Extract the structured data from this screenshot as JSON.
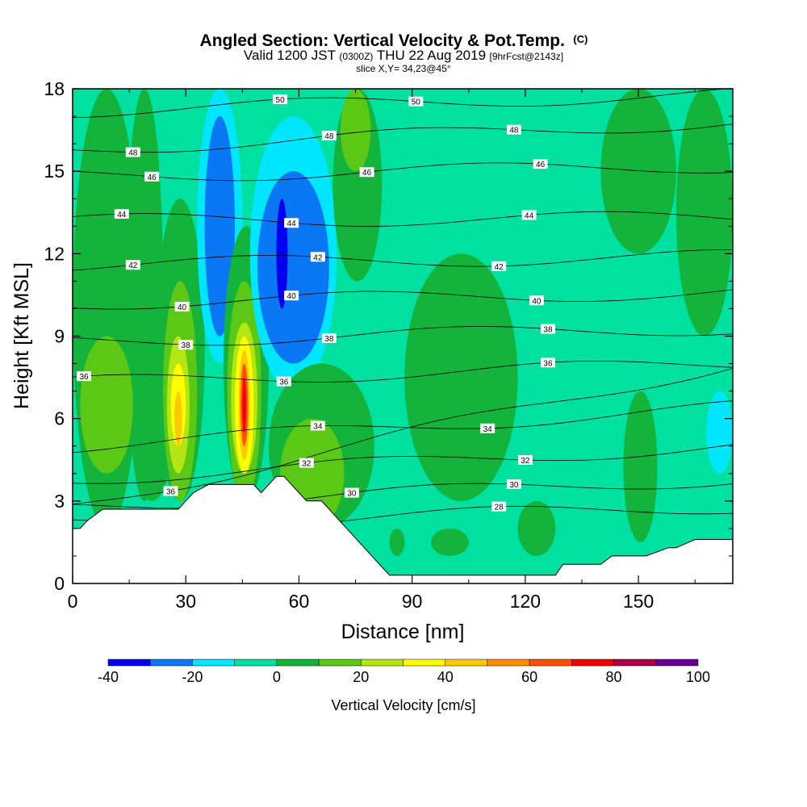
{
  "title": {
    "main": "Angled Section: Vertical Velocity & Pot.Temp.",
    "main_suffix": "(C)",
    "valid_prefix": "Valid 1200 JST",
    "valid_utc": "(0300Z)",
    "valid_date": "THU 22 Aug 2019",
    "valid_fcst": "[9hrFcst@2143z]",
    "slice": "slice X,Y= 34,23@45°"
  },
  "chart_data": {
    "type": "heatmap",
    "xlabel": "Distance [nm]",
    "ylabel": "Height [Kft MSL]",
    "xlim": [
      0,
      175
    ],
    "ylim": [
      0,
      18
    ],
    "x_ticks": [
      "0",
      "30",
      "60",
      "90",
      "120",
      "150"
    ],
    "x_tick_values": [
      0,
      30,
      60,
      90,
      120,
      150
    ],
    "y_ticks": [
      "0",
      "3",
      "6",
      "9",
      "12",
      "15",
      "18"
    ],
    "y_tick_values": [
      0,
      3,
      6,
      9,
      12,
      15,
      18
    ],
    "fill_variable": "Vertical Velocity [cm/s]",
    "colorbar": {
      "label": "Vertical Velocity [cm/s]",
      "levels": [
        -40,
        -30,
        -20,
        -10,
        0,
        10,
        20,
        30,
        40,
        50,
        60,
        70,
        80,
        90,
        100
      ],
      "tick_labels": [
        "-40",
        "-20",
        "0",
        "20",
        "40",
        "60",
        "80",
        "100"
      ],
      "tick_values": [
        -40,
        -20,
        0,
        20,
        40,
        60,
        80,
        100
      ],
      "colors": [
        "#0000f0",
        "#0a78f5",
        "#00e6ff",
        "#00e0a0",
        "#14b43c",
        "#5ac814",
        "#b4e614",
        "#ffff00",
        "#ffc800",
        "#ff8c00",
        "#ff5000",
        "#f00000",
        "#aa0046",
        "#640096"
      ]
    },
    "background_color": "#00e0a0",
    "w_cells": [
      {
        "x": [
          0,
          175
        ],
        "z": [
          0,
          18
        ],
        "w": -5
      },
      {
        "x": [
          0,
          18
        ],
        "z": [
          2,
          18
        ],
        "w": 5
      },
      {
        "x": [
          14,
          24
        ],
        "z": [
          3,
          18
        ],
        "w": 5
      },
      {
        "x": [
          2,
          16
        ],
        "z": [
          4,
          9
        ],
        "w": 15
      },
      {
        "x": [
          16,
          26
        ],
        "z": [
          3,
          7
        ],
        "w": 5
      },
      {
        "x": [
          22,
          35
        ],
        "z": [
          3,
          14
        ],
        "w": 5
      },
      {
        "x": [
          24,
          33
        ],
        "z": [
          3,
          11
        ],
        "w": 15
      },
      {
        "x": [
          25,
          31
        ],
        "z": [
          4,
          9
        ],
        "w": 25
      },
      {
        "x": [
          26,
          30
        ],
        "z": [
          5,
          8
        ],
        "w": 35
      },
      {
        "x": [
          27,
          29
        ],
        "z": [
          5,
          7
        ],
        "w": 45
      },
      {
        "x": [
          33,
          45
        ],
        "z": [
          8,
          18
        ],
        "w": -15
      },
      {
        "x": [
          35,
          43
        ],
        "z": [
          9,
          17
        ],
        "w": -25
      },
      {
        "x": [
          40,
          52
        ],
        "z": [
          3,
          13
        ],
        "w": 5
      },
      {
        "x": [
          41,
          50
        ],
        "z": [
          3,
          11
        ],
        "w": 15
      },
      {
        "x": [
          42,
          49
        ],
        "z": [
          4,
          9.5
        ],
        "w": 25
      },
      {
        "x": [
          43,
          48
        ],
        "z": [
          4,
          9
        ],
        "w": 35
      },
      {
        "x": [
          44,
          47
        ],
        "z": [
          4.5,
          8.5
        ],
        "w": 45
      },
      {
        "x": [
          44.5,
          46.5
        ],
        "z": [
          5,
          8
        ],
        "w": 60
      },
      {
        "x": [
          45,
          46
        ],
        "z": [
          5.5,
          7.5
        ],
        "w": 75
      },
      {
        "x": [
          47,
          70
        ],
        "z": [
          7,
          17
        ],
        "w": -15
      },
      {
        "x": [
          49,
          68
        ],
        "z": [
          8,
          15
        ],
        "w": -25
      },
      {
        "x": [
          54,
          57
        ],
        "z": [
          10,
          14
        ],
        "w": -35
      },
      {
        "x": [
          52,
          80
        ],
        "z": [
          2,
          8
        ],
        "w": 5
      },
      {
        "x": [
          55,
          72
        ],
        "z": [
          2,
          6
        ],
        "w": 15
      },
      {
        "x": [
          69,
          82
        ],
        "z": [
          11,
          18
        ],
        "w": 5
      },
      {
        "x": [
          71,
          79
        ],
        "z": [
          15,
          18
        ],
        "w": 15
      },
      {
        "x": [
          88,
          118
        ],
        "z": [
          3,
          12
        ],
        "w": 5
      },
      {
        "x": [
          84,
          88
        ],
        "z": [
          1,
          2
        ],
        "w": 5
      },
      {
        "x": [
          95,
          105
        ],
        "z": [
          1,
          2
        ],
        "w": 5
      },
      {
        "x": [
          118,
          128
        ],
        "z": [
          1,
          3
        ],
        "w": 5
      },
      {
        "x": [
          140,
          160
        ],
        "z": [
          12,
          18
        ],
        "w": 5
      },
      {
        "x": [
          146,
          155
        ],
        "z": [
          1.5,
          7
        ],
        "w": 5
      },
      {
        "x": [
          160,
          175
        ],
        "z": [
          9,
          18
        ],
        "w": 5
      },
      {
        "x": [
          168,
          175
        ],
        "z": [
          4,
          7
        ],
        "w": -15
      }
    ],
    "terrain": {
      "x": [
        0,
        2,
        4,
        8,
        12,
        20,
        24,
        28,
        30,
        32,
        36,
        40,
        44,
        46,
        48,
        50,
        52,
        54,
        56,
        58,
        60,
        62,
        64,
        66,
        68,
        70,
        72,
        74,
        76,
        78,
        80,
        82,
        84,
        86,
        88,
        90,
        96,
        104,
        112,
        120,
        128,
        130,
        140,
        143,
        150,
        152,
        158,
        160,
        165,
        170,
        175
      ],
      "z": [
        2,
        2,
        2.3,
        2.7,
        2.7,
        2.7,
        2.7,
        2.7,
        3.0,
        3.3,
        3.6,
        3.6,
        3.6,
        3.6,
        3.6,
        3.3,
        3.6,
        3.9,
        3.9,
        3.6,
        3.3,
        3.0,
        3.0,
        3.0,
        2.7,
        2.4,
        2.1,
        1.8,
        1.5,
        1.2,
        0.9,
        0.6,
        0.3,
        0.3,
        0.3,
        0.3,
        0.3,
        0.3,
        0.3,
        0.3,
        0.3,
        0.7,
        0.7,
        1.0,
        1.0,
        1.0,
        1.3,
        1.3,
        1.6,
        1.6,
        1.6
      ]
    },
    "theta_contours": [
      {
        "label": "28",
        "z_left": 2.1,
        "z_right": 2.8,
        "label_x": 113
      },
      {
        "label": "30",
        "z_left": 2.8,
        "z_right": 3.8,
        "label_x": 74
      },
      {
        "label": "30",
        "z_left": 2.8,
        "z_right": 3.8,
        "label_x": 117
      },
      {
        "label": "32",
        "z_left": 3.8,
        "z_right": 5.0,
        "label_x": 62
      },
      {
        "label": "32",
        "z_left": 3.8,
        "z_right": 5.0,
        "label_x": 120
      },
      {
        "label": "34",
        "z_left": 5.0,
        "z_right": 6.4,
        "label_x": 65
      },
      {
        "label": "34",
        "z_left": 5.0,
        "z_right": 6.4,
        "label_x": 110
      },
      {
        "label": "36",
        "z_left": 7.3,
        "z_right": 8.0,
        "label_x": 56
      },
      {
        "label": "36",
        "z_left": 7.3,
        "z_right": 8.0,
        "label_x": 126
      },
      {
        "label": "38",
        "z_left": 8.8,
        "z_right": 9.3,
        "label_x": 30
      },
      {
        "label": "38",
        "z_left": 8.8,
        "z_right": 9.3,
        "label_x": 68
      },
      {
        "label": "38",
        "z_left": 8.8,
        "z_right": 9.3,
        "label_x": 126
      },
      {
        "label": "40",
        "z_left": 10.2,
        "z_right": 10.6,
        "label_x": 29
      },
      {
        "label": "40",
        "z_left": 10.2,
        "z_right": 10.6,
        "label_x": 58
      },
      {
        "label": "40",
        "z_left": 10.2,
        "z_right": 10.6,
        "label_x": 123
      },
      {
        "label": "42",
        "z_left": 11.6,
        "z_right": 11.9,
        "label_x": 16
      },
      {
        "label": "42",
        "z_left": 11.6,
        "z_right": 11.9,
        "label_x": 65
      },
      {
        "label": "42",
        "z_left": 11.6,
        "z_right": 11.9,
        "label_x": 113
      },
      {
        "label": "44",
        "z_left": 13.2,
        "z_right": 13.3,
        "label_x": 13
      },
      {
        "label": "44",
        "z_left": 13.2,
        "z_right": 13.3,
        "label_x": 58
      },
      {
        "label": "44",
        "z_left": 13.2,
        "z_right": 13.3,
        "label_x": 121
      },
      {
        "label": "46",
        "z_left": 14.8,
        "z_right": 15.2,
        "label_x": 21
      },
      {
        "label": "46",
        "z_left": 14.8,
        "z_right": 15.2,
        "label_x": 78
      },
      {
        "label": "46",
        "z_left": 14.8,
        "z_right": 15.2,
        "label_x": 124
      },
      {
        "label": "48",
        "z_left": 15.8,
        "z_right": 16.8,
        "label_x": 16
      },
      {
        "label": "48",
        "z_left": 15.8,
        "z_right": 16.8,
        "label_x": 68
      },
      {
        "label": "48",
        "z_left": 15.8,
        "z_right": 16.8,
        "label_x": 117
      },
      {
        "label": "50",
        "z_left": 17.2,
        "z_right": 17.8,
        "label_x": 55
      },
      {
        "label": "50",
        "z_left": 17.2,
        "z_right": 17.8,
        "label_x": 91
      },
      {
        "label": "36",
        "z_left": 2.8,
        "z_right": 8.0,
        "label_x": 26
      },
      {
        "label": "36",
        "z_left": 7.3,
        "z_right": 8.0,
        "label_x": 3
      }
    ]
  }
}
